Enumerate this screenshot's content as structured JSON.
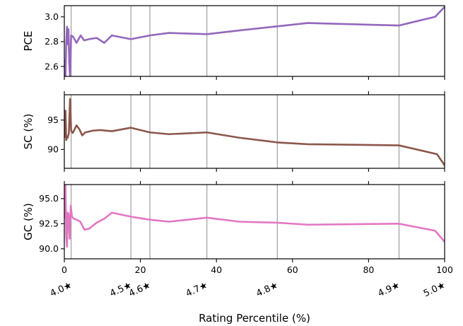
{
  "chart_data": {
    "type": "line",
    "shared_x": {
      "label": "Rating Percentile (%)",
      "lim": [
        0,
        100
      ],
      "ticks": [
        0,
        20,
        40,
        60,
        80,
        100
      ],
      "tick_labels": [
        "0",
        "20",
        "40",
        "60",
        "80",
        "100"
      ],
      "star_ticks": [
        {
          "x": 1.8,
          "label": "4.0★"
        },
        {
          "x": 17.5,
          "label": "4.5★"
        },
        {
          "x": 22.5,
          "label": "4.6★"
        },
        {
          "x": 37.5,
          "label": "4.7★"
        },
        {
          "x": 56.0,
          "label": "4.8★"
        },
        {
          "x": 88.0,
          "label": "4.9★"
        },
        {
          "x": 100.0,
          "label": "5.0★"
        }
      ],
      "vlines": [
        1.8,
        17.5,
        22.5,
        37.5,
        56.0,
        88.0
      ]
    },
    "panels": [
      {
        "ylabel": "PCE",
        "color": "#9467bd",
        "ylim": [
          2.52,
          3.09
        ],
        "yticks": [
          2.6,
          2.8,
          3.0
        ],
        "ytick_labels": [
          "2.6",
          "2.8",
          "3.0"
        ],
        "series": {
          "x": [
            0.1,
            0.3,
            0.5,
            0.7,
            0.9,
            1.1,
            1.3,
            1.5,
            1.8,
            2.3,
            3.2,
            4.3,
            5.2,
            6.5,
            8.5,
            10.5,
            12.5,
            17.5,
            22.5,
            27.5,
            37.5,
            46.0,
            55.0,
            64.0,
            88.0,
            97.5,
            100.0
          ],
          "y": [
            2.66,
            2.52,
            2.79,
            2.92,
            2.78,
            2.9,
            2.62,
            2.52,
            2.85,
            2.84,
            2.79,
            2.85,
            2.81,
            2.82,
            2.83,
            2.79,
            2.85,
            2.82,
            2.85,
            2.87,
            2.86,
            2.89,
            2.92,
            2.95,
            2.93,
            3.0,
            3.08
          ]
        }
      },
      {
        "ylabel": "SC (%)",
        "color": "#8c564b",
        "ylim": [
          86.8,
          99.3
        ],
        "yticks": [
          90,
          95
        ],
        "ytick_labels": [
          "90",
          "95"
        ],
        "series": {
          "x": [
            0.1,
            0.3,
            0.5,
            0.7,
            0.9,
            1.2,
            1.5,
            1.8,
            2.2,
            2.6,
            3.2,
            4.0,
            4.7,
            5.5,
            7.5,
            9.5,
            12.5,
            17.5,
            22.5,
            27.5,
            37.5,
            46.0,
            56.0,
            64.0,
            88.0,
            98.0,
            100.0
          ],
          "y": [
            92.0,
            96.6,
            91.6,
            92.2,
            92.0,
            92.8,
            98.6,
            93.2,
            92.8,
            93.3,
            94.1,
            93.4,
            92.4,
            92.9,
            93.2,
            93.3,
            93.1,
            93.7,
            92.9,
            92.6,
            92.9,
            92.0,
            91.2,
            90.9,
            90.7,
            89.2,
            87.3
          ]
        }
      },
      {
        "ylabel": "GC (%)",
        "color": "#e377c2",
        "ylim": [
          89.0,
          96.4
        ],
        "yticks": [
          90.0,
          92.5,
          95.0
        ],
        "ytick_labels": [
          "90.0",
          "92.5",
          "95.0"
        ],
        "series": {
          "x": [
            0.1,
            0.3,
            0.5,
            0.7,
            0.9,
            1.1,
            1.4,
            1.7,
            2.0,
            2.5,
            3.2,
            4.2,
            5.3,
            6.5,
            8.5,
            10.5,
            12.5,
            17.5,
            22.5,
            27.5,
            37.5,
            46.0,
            56.0,
            64.0,
            88.0,
            97.5,
            100.0
          ],
          "y": [
            93.0,
            96.3,
            91.2,
            90.2,
            93.6,
            93.5,
            91.0,
            94.3,
            93.2,
            93.0,
            92.9,
            92.7,
            91.9,
            92.0,
            92.6,
            93.0,
            93.6,
            93.2,
            92.9,
            92.7,
            93.1,
            92.7,
            92.6,
            92.4,
            92.5,
            91.8,
            90.7
          ]
        }
      }
    ]
  }
}
